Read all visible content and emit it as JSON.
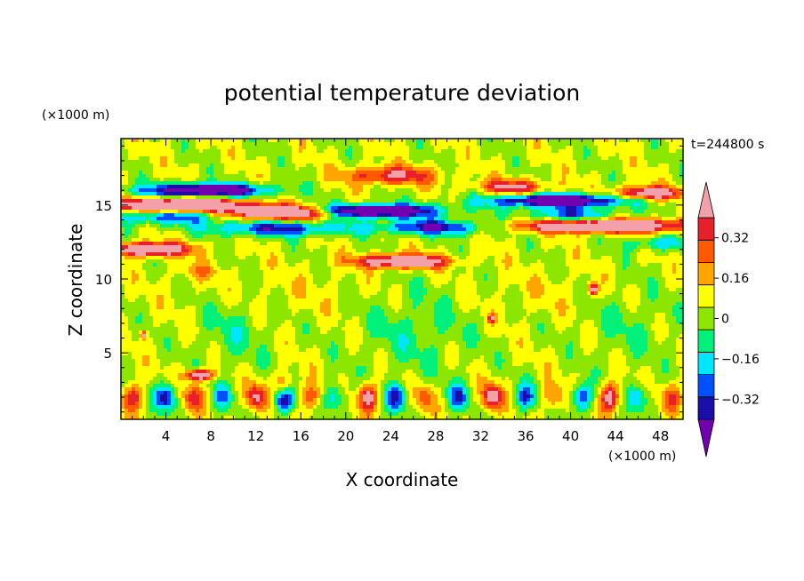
{
  "chart_data": {
    "type": "heatmap",
    "title": "potential temperature deviation",
    "time_label": "t=244800 s",
    "xlabel": "X coordinate",
    "ylabel": "Z coordinate",
    "x_unit": "(×1000 m)",
    "y_unit": "(×1000 m)",
    "xlim": [
      0,
      50
    ],
    "ylim": [
      0.5,
      19.5
    ],
    "x_ticks": [
      4,
      8,
      12,
      16,
      20,
      24,
      28,
      32,
      36,
      40,
      44,
      48
    ],
    "y_ticks": [
      5,
      10,
      15
    ],
    "colorbar": {
      "levels": [
        -0.4,
        -0.32,
        -0.24,
        -0.16,
        -0.08,
        0,
        0.08,
        0.16,
        0.24,
        0.32,
        0.4
      ],
      "labels": [
        "0.32",
        "0.16",
        "0",
        "-0.16",
        "-0.32"
      ],
      "label_values": [
        0.32,
        0.16,
        0,
        -0.16,
        -0.32
      ],
      "colors": [
        "#7000b0",
        "#1a0ea8",
        "#0050ff",
        "#00e6ff",
        "#00f07a",
        "#8ce600",
        "#ffff00",
        "#ffa500",
        "#ff5a00",
        "#e8202a",
        "#f4a0a8"
      ]
    },
    "features": [
      {
        "label": "warm band z≈15",
        "x": [
          0,
          10
        ],
        "z": 15.0,
        "value": 0.45
      },
      {
        "label": "warm band z≈14.5",
        "x": [
          11,
          18
        ],
        "z": 14.5,
        "value": 0.45
      },
      {
        "label": "cold core z≈14.6",
        "x": [
          18,
          27
        ],
        "z": 14.6,
        "value": -0.45
      },
      {
        "label": "warm band z≈13.5",
        "x": [
          36,
          50
        ],
        "z": 13.6,
        "value": 0.4
      },
      {
        "label": "cold band z≈16",
        "x": [
          3,
          12
        ],
        "z": 16.0,
        "value": -0.4
      },
      {
        "label": "cold band z≈15.3",
        "x": [
          34,
          44
        ],
        "z": 15.3,
        "value": -0.4
      },
      {
        "label": "warm patch z≈12",
        "x": [
          0,
          5
        ],
        "z": 12.0,
        "value": 0.4
      },
      {
        "label": "warm patch z≈11.2",
        "x": [
          22,
          28
        ],
        "z": 11.2,
        "value": 0.38
      },
      {
        "label": "cell row z≈2",
        "x": [
          0,
          50
        ],
        "z": 2.0,
        "value": 0.3
      }
    ]
  }
}
